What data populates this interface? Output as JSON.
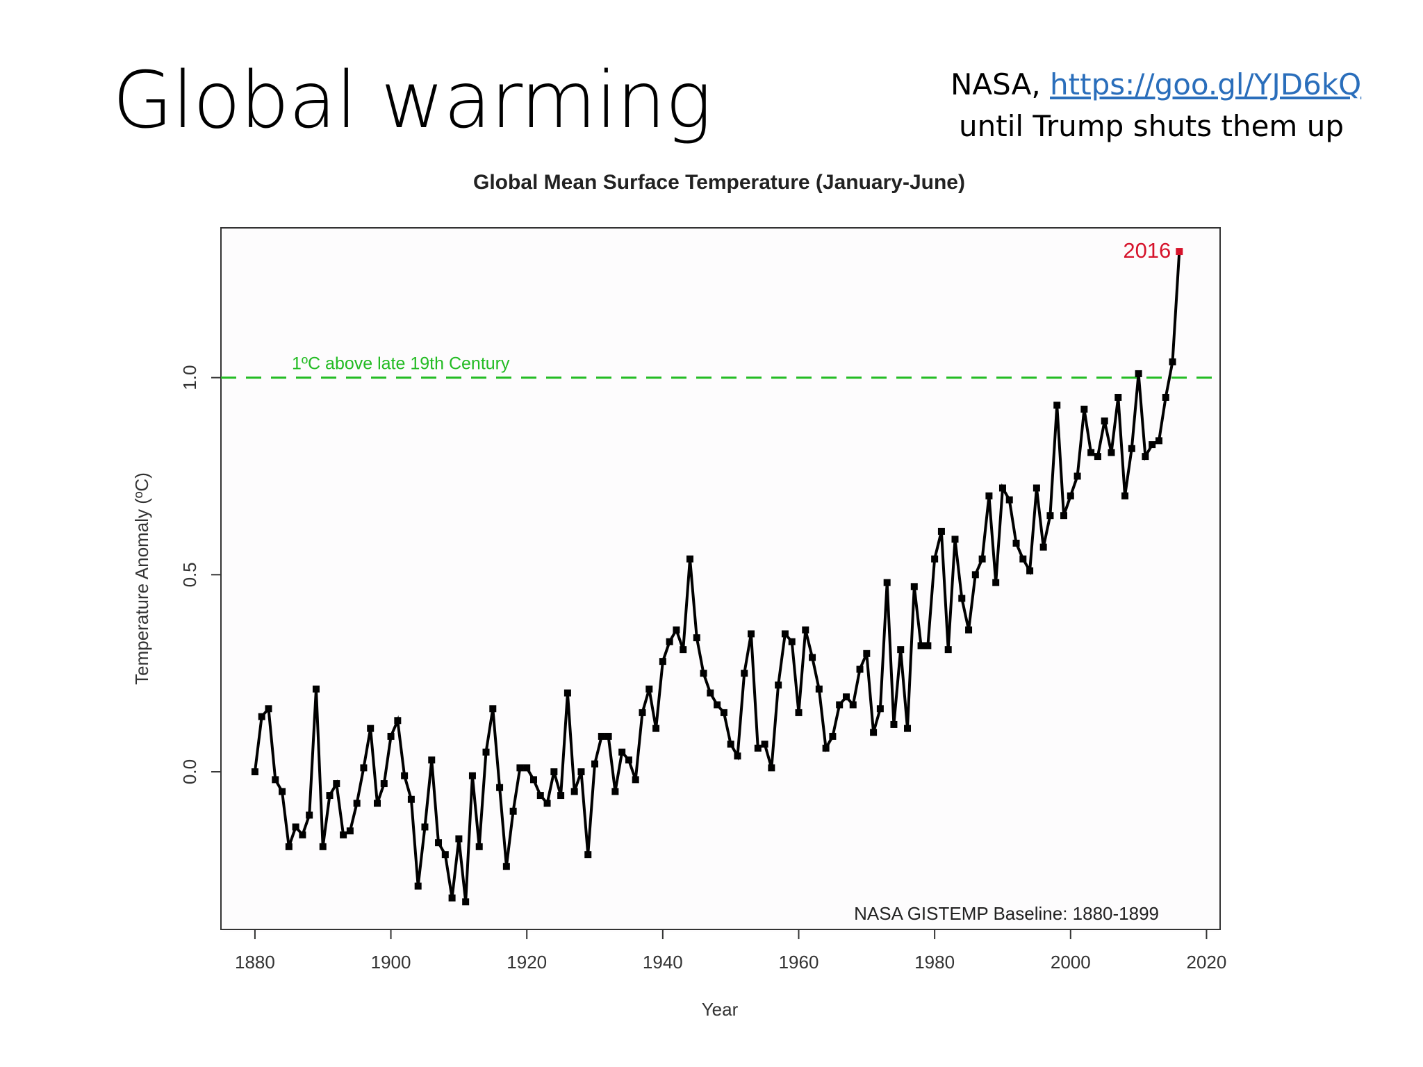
{
  "slide": {
    "title": "Global warming",
    "source_prefix": "NASA, ",
    "source_link": "https://goo.gl/YJD6kQ",
    "source_note": "until Trump shuts them up"
  },
  "colors": {
    "line": "#000000",
    "highlight": "#d6132b",
    "threshold": "#22bb22",
    "link": "#2a6ebb"
  },
  "chart_data": {
    "type": "line",
    "title": "Global Mean Surface Temperature (January-June)",
    "xlabel": "Year",
    "ylabel": "Temperature Anomaly (ºC)",
    "xlim": [
      1875,
      2022
    ],
    "ylim": [
      -0.4,
      1.38
    ],
    "xticks": [
      1880,
      1900,
      1920,
      1940,
      1960,
      1980,
      2000,
      2020
    ],
    "yticks": [
      "0.0",
      "0.5",
      "1.0"
    ],
    "grid": false,
    "threshold": {
      "value": 1.0,
      "label": "1ºC above late 19th Century"
    },
    "highlight": {
      "label": "2016",
      "x": 2016,
      "y": 1.32
    },
    "baseline_note": "NASA GISTEMP Baseline: 1880-1899",
    "series": [
      {
        "start_year": 1880,
        "values": [
          0.0,
          0.14,
          0.16,
          -0.02,
          -0.05,
          -0.19,
          -0.14,
          -0.16,
          -0.11,
          0.21,
          -0.19,
          -0.06,
          -0.03,
          -0.16,
          -0.15,
          -0.08,
          0.01,
          0.11,
          -0.08,
          -0.03,
          0.09,
          0.13,
          -0.01,
          -0.07,
          -0.29,
          -0.14,
          0.03,
          -0.18,
          -0.21,
          -0.32,
          -0.17,
          -0.33,
          -0.01,
          -0.19,
          0.05,
          0.16,
          -0.04,
          -0.24,
          -0.1,
          0.01,
          0.01,
          -0.02,
          -0.06,
          -0.08,
          0.0,
          -0.06,
          0.2,
          -0.05,
          0.0,
          -0.21,
          0.02,
          0.09,
          0.09,
          -0.05,
          0.05,
          0.03,
          -0.02,
          0.15,
          0.21,
          0.11,
          0.28,
          0.33,
          0.36,
          0.31,
          0.54,
          0.34,
          0.25,
          0.2,
          0.17,
          0.15,
          0.07,
          0.04,
          0.25,
          0.35,
          0.06,
          0.07,
          0.01,
          0.22,
          0.35,
          0.33,
          0.15,
          0.36,
          0.29,
          0.21,
          0.06,
          0.09,
          0.17,
          0.19,
          0.17,
          0.26,
          0.3,
          0.1,
          0.16,
          0.48,
          0.12,
          0.31,
          0.11,
          0.47,
          0.32,
          0.32,
          0.54,
          0.61,
          0.31,
          0.59,
          0.44,
          0.36,
          0.5,
          0.54,
          0.7,
          0.48,
          0.72,
          0.69,
          0.58,
          0.54,
          0.51,
          0.72,
          0.57,
          0.65,
          0.93,
          0.65,
          0.7,
          0.75,
          0.92,
          0.81,
          0.8,
          0.89,
          0.81,
          0.95,
          0.7,
          0.82,
          1.01,
          0.8,
          0.83,
          0.84,
          0.95,
          1.04,
          1.32
        ]
      }
    ]
  }
}
